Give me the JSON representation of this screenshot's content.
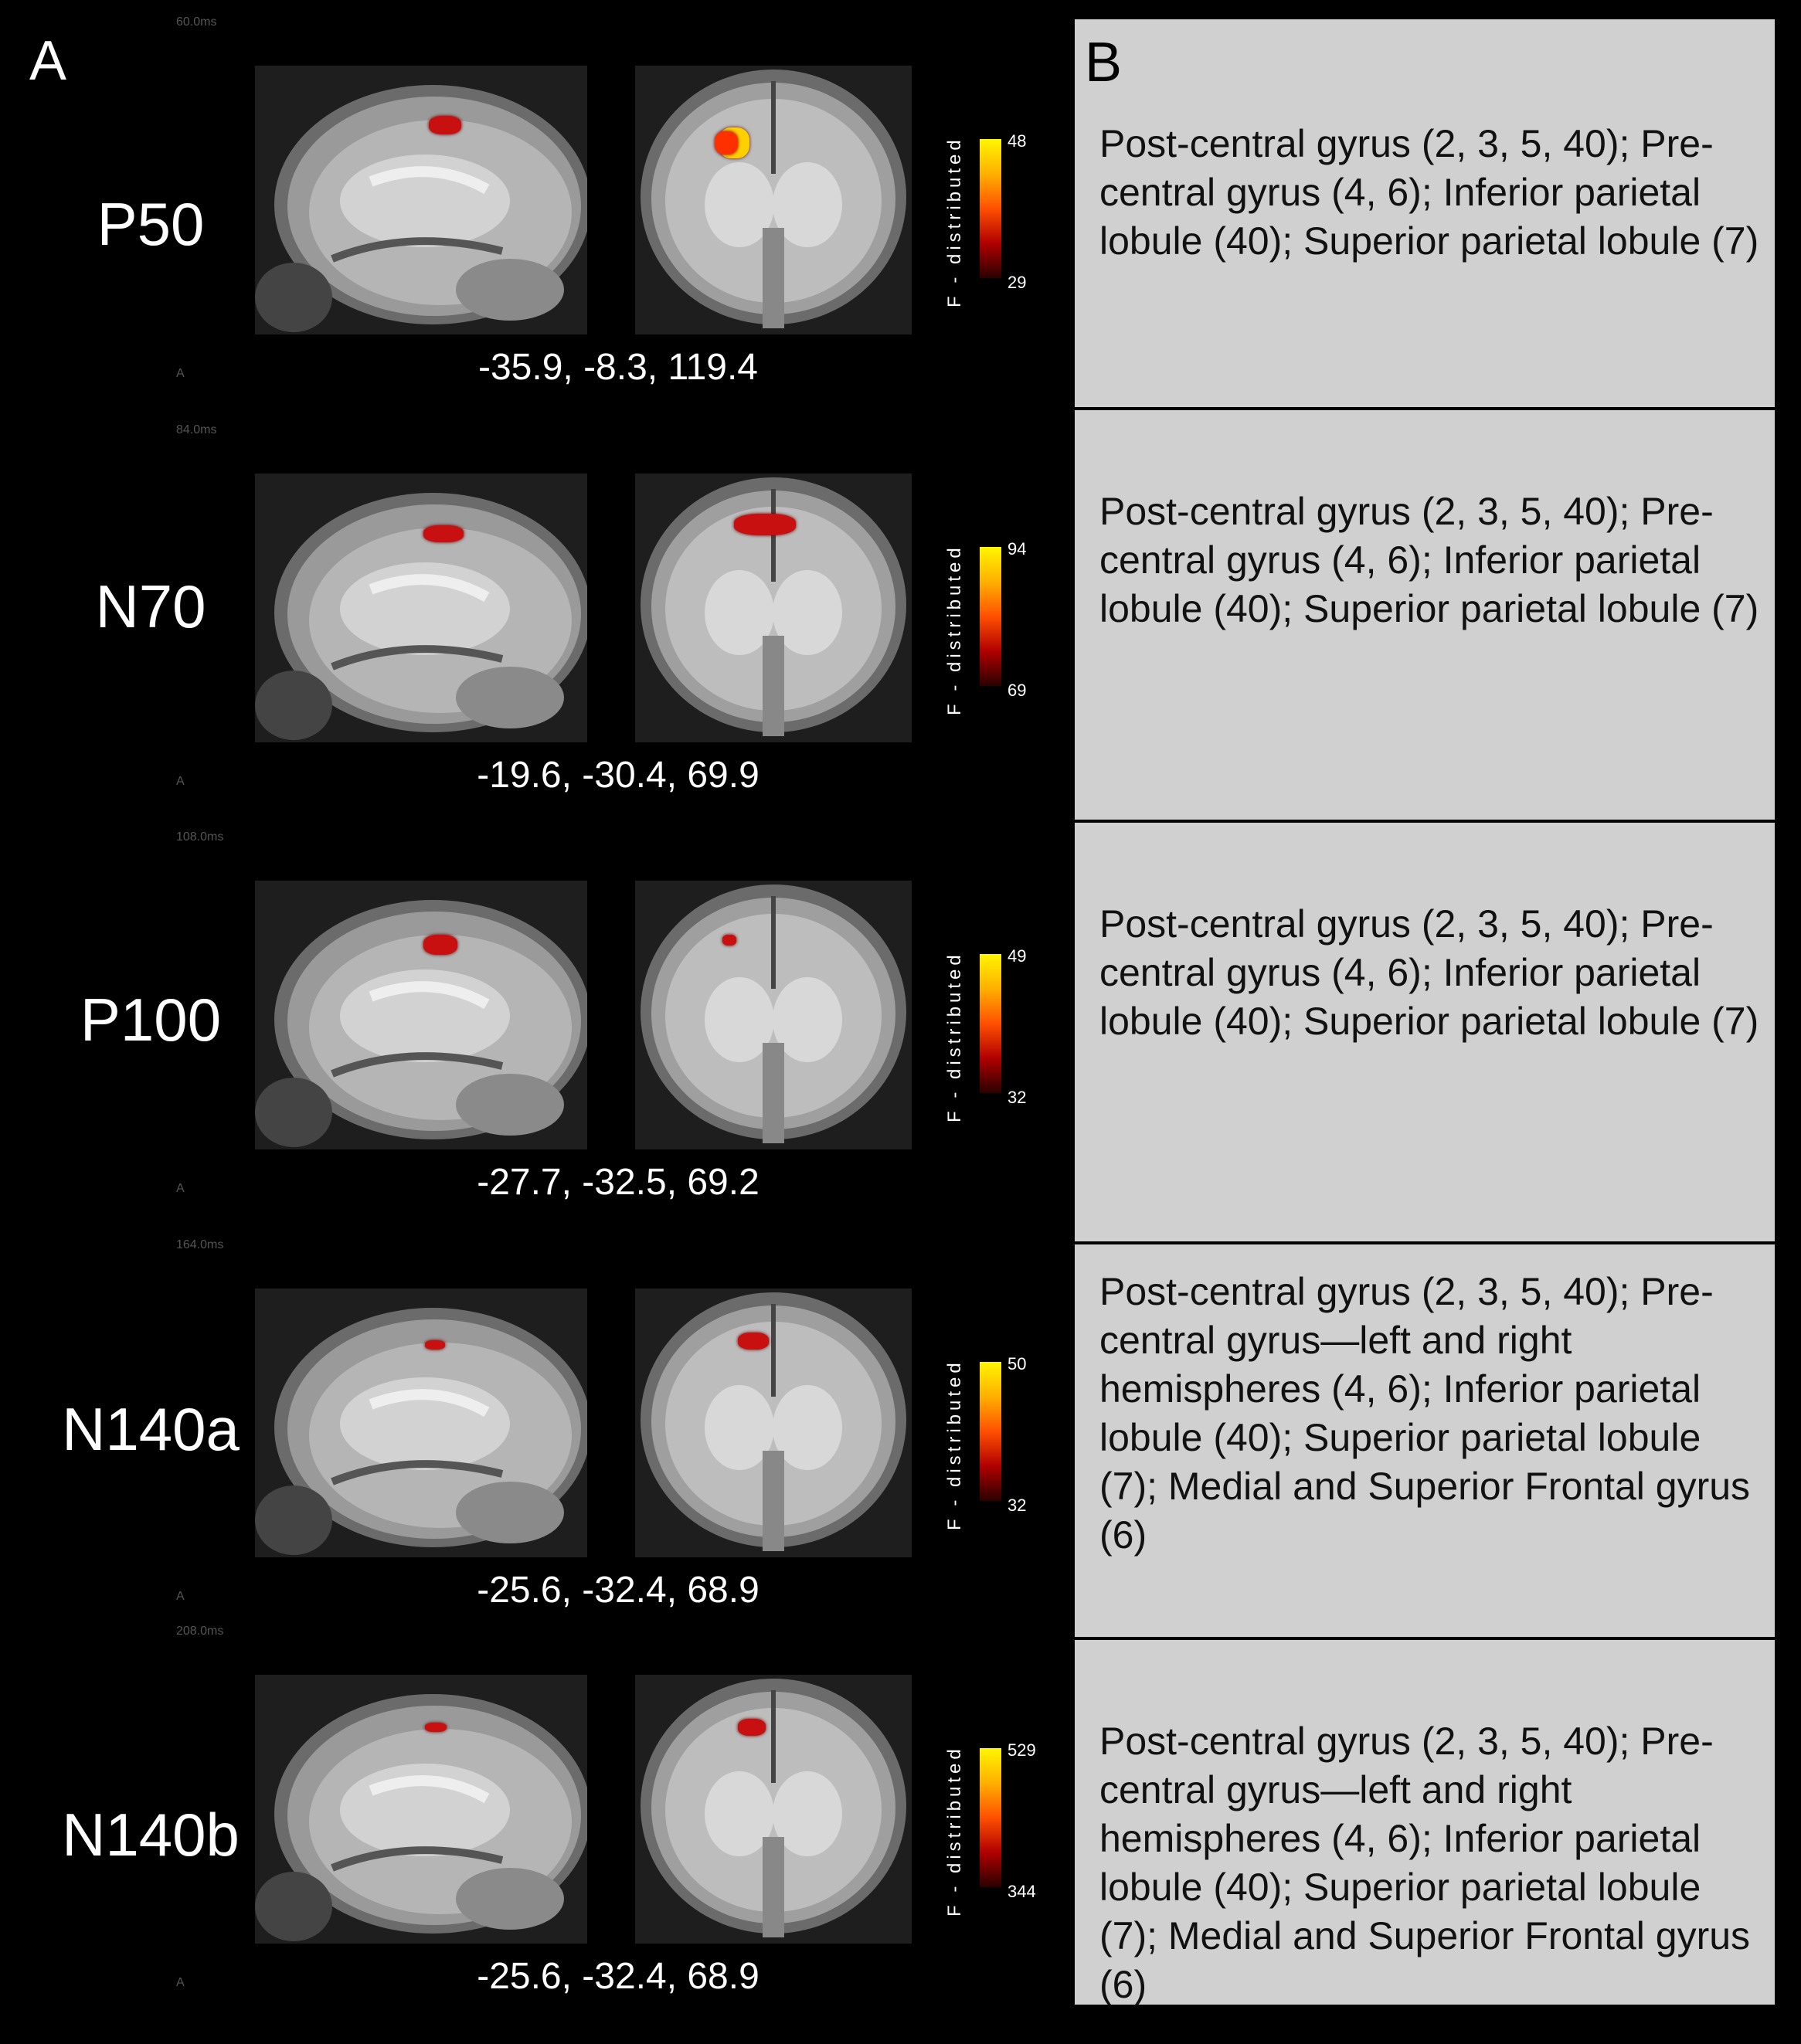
{
  "panel_a_label": "A",
  "panel_b_label": "B",
  "colorbar_title": "F - distributed",
  "view_marker": "A",
  "rows": [
    {
      "component": "P50",
      "time": "60.0ms",
      "coords": "-35.9, -8.3, 119.4",
      "cmax": "48",
      "cmin": "29",
      "regions": "Post-central gyrus (2, 3, 5, 40); Pre-central gyrus (4, 6); Inferior parietal lobule (40); Superior parietal lobule (7)"
    },
    {
      "component": "N70",
      "time": "84.0ms",
      "coords": "-19.6, -30.4, 69.9",
      "cmax": "94",
      "cmin": "69",
      "regions": "Post-central gyrus (2, 3, 5, 40); Pre-central gyrus (4, 6); Inferior parietal lobule (40); Superior parietal lobule (7)"
    },
    {
      "component": "P100",
      "time": "108.0ms",
      "coords": "-27.7, -32.5, 69.2",
      "cmax": "49",
      "cmin": "32",
      "regions": "Post-central gyrus (2, 3, 5, 40); Pre-central gyrus (4, 6); Inferior parietal lobule (40); Superior parietal lobule (7)"
    },
    {
      "component": "N140a",
      "time": "164.0ms",
      "coords": "-25.6, -32.4, 68.9",
      "cmax": "50",
      "cmin": "32",
      "regions": "Post-central gyrus (2, 3, 5, 40); Pre-central gyrus—left and right hemispheres (4, 6); Inferior parietal lobule (40); Superior parietal lobule (7); Medial and Superior Frontal gyrus (6)"
    },
    {
      "component": "N140b",
      "time": "208.0ms",
      "coords": "-25.6, -32.4, 68.9",
      "cmax": "529",
      "cmin": "344",
      "regions": "Post-central gyrus (2, 3, 5, 40); Pre-central gyrus—left and right hemispheres (4, 6); Inferior parietal lobule (40); Superior parietal lobule (7); Medial and Superior Frontal gyrus (6)"
    }
  ]
}
